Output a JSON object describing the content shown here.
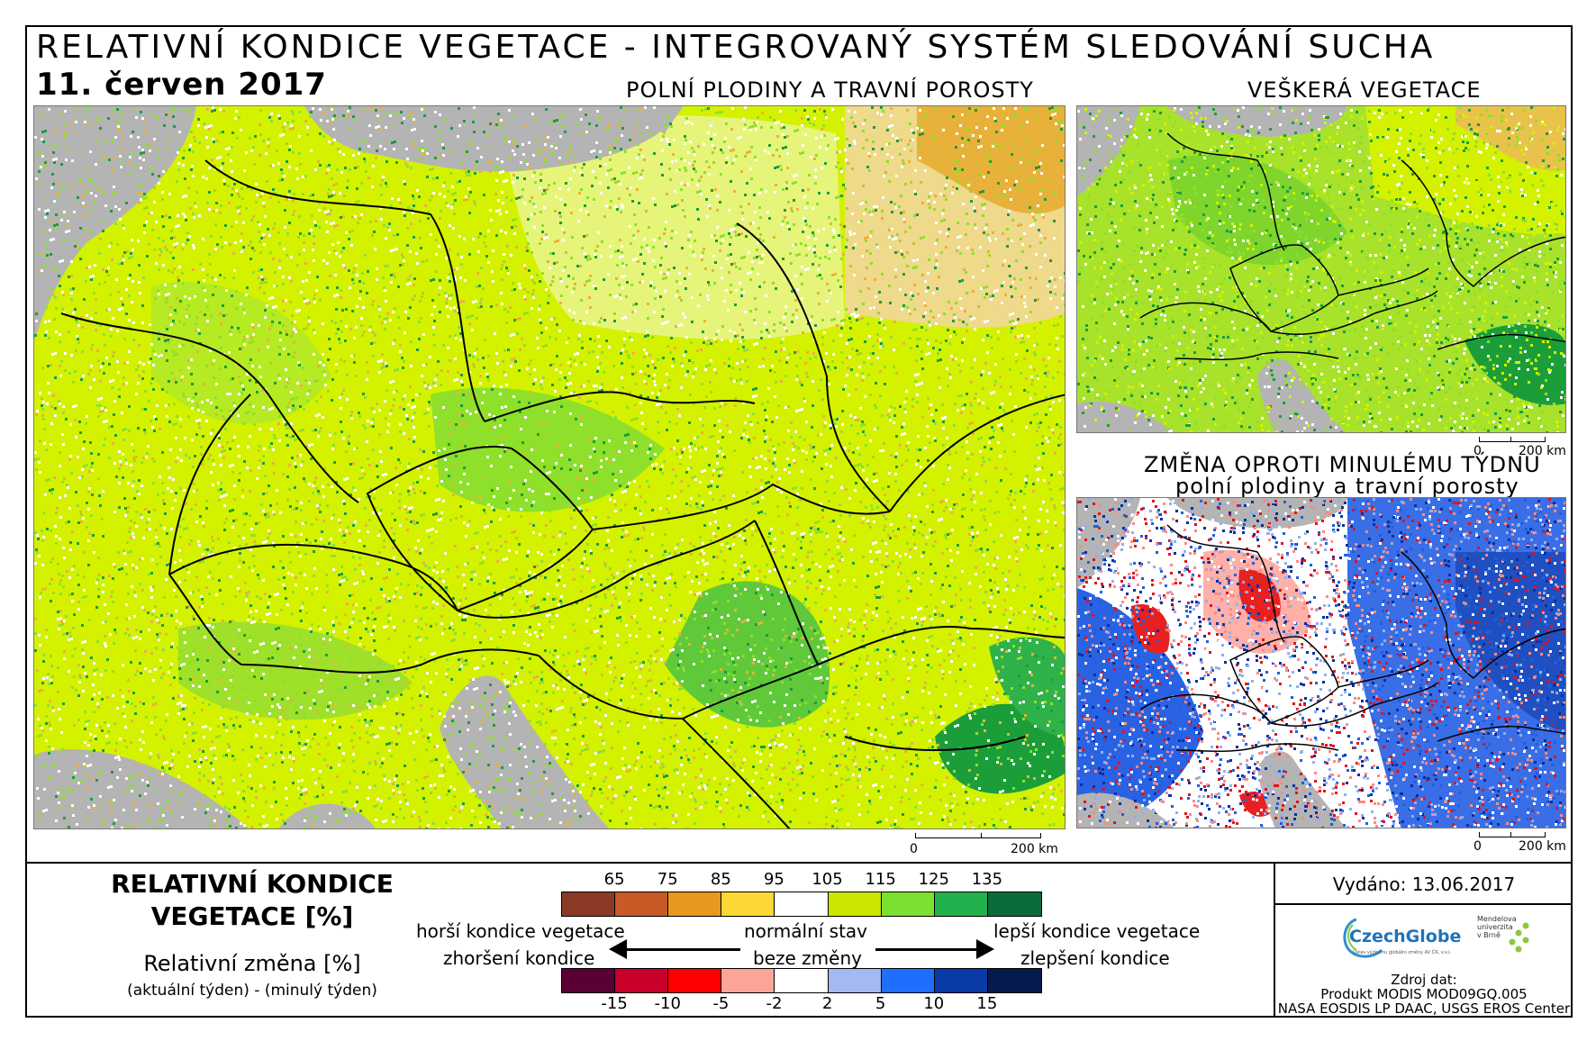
{
  "header": {
    "title": "RELATIVNÍ KONDICE VEGETACE - INTEGROVANÝ SYSTÉM SLEDOVÁNÍ SUCHA",
    "date": "11. červen 2017"
  },
  "maps": {
    "main_title": "POLNÍ PLODINY A TRAVNÍ POROSTY",
    "top_right_title": "VEŠKERÁ VEGETACE",
    "bottom_right_title_1": "ZMĚNA OPROTI MINULÉMU TÝDNU",
    "bottom_right_title_2": "polní plodiny a travní porosty",
    "scale_zero": "0",
    "scale_main": "200 km",
    "scale_small": "200 km",
    "colors": {
      "water": "#b4b4b4",
      "land_yellow": "#d4f200",
      "land_green": "#8ee02a",
      "land_darkgreen": "#1b9e3a",
      "land_orange": "#e8b23a",
      "white": "#ffffff",
      "red": "#e4121b",
      "blue": "#1f5fe0",
      "darkblue": "#0a2f9e",
      "border": "#000000"
    }
  },
  "legend": {
    "title_line1": "RELATIVNÍ KONDICE",
    "title_line2": "VEGETACE [%]",
    "change_title": "Relativní změna [%]",
    "change_sub": "(aktuální týden) - (minulý týden)",
    "condition_ticks": [
      "65",
      "75",
      "85",
      "95",
      "105",
      "115",
      "125",
      "135"
    ],
    "condition_colors": [
      "#8b3a26",
      "#c85a28",
      "#e59a1f",
      "#fdd835",
      "#ffffff",
      "#cde600",
      "#7ce033",
      "#22b14c",
      "#0b6b3a"
    ],
    "change_ticks": [
      "-15",
      "-10",
      "-5",
      "-2",
      "2",
      "5",
      "10",
      "15"
    ],
    "change_colors": [
      "#5a0034",
      "#c8002b",
      "#ff0000",
      "#fba597",
      "#ffffff",
      "#a5b8f0",
      "#1f6fff",
      "#0a3aa6",
      "#071a4d"
    ],
    "worse_condition": "horší kondice vegetace",
    "normal_state": "normální stav",
    "better_condition": "lepší kondice vegetace",
    "worsening": "zhoršení kondice",
    "no_change": "beze změny",
    "improvement": "zlepšení kondice"
  },
  "info": {
    "issued_label": "Vydáno:",
    "issued_date": "13.06.2017",
    "logo_czechglobe": "CzechGlobe",
    "logo_czechglobe_sub": "Ústav výzkumu globální změny AV ČR, v.v.i.",
    "logo_mendel": "Mendelova univerzita v Brně",
    "source_label": "Zdroj dat:",
    "source_line1": "Produkt MODIS MOD09GQ.005",
    "source_line2": "NASA EOSDIS LP DAAC, USGS EROS Center"
  }
}
